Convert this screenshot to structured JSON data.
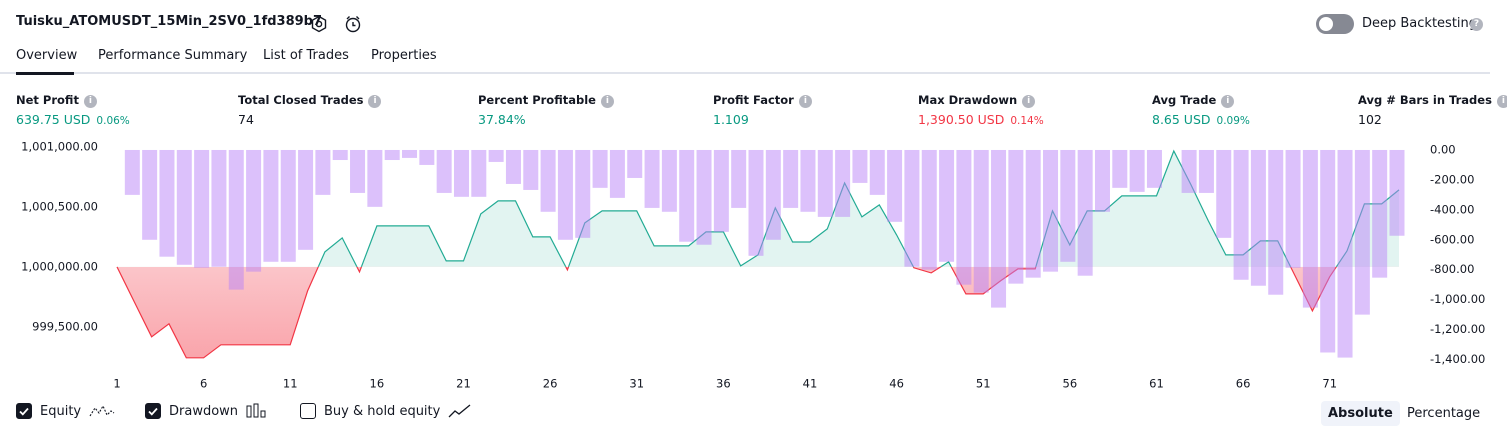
{
  "header": {
    "title": "Tuisku_ATOMUSDT_15Min_2SV0_1fd389b7",
    "deep_backtesting": "Deep Backtesting"
  },
  "tabs": [
    "Overview",
    "Performance Summary",
    "List of Trades",
    "Properties"
  ],
  "active_tab": 0,
  "metrics": [
    {
      "label": "Net Profit",
      "value": "639.75 USD",
      "pct": "0.06%",
      "tone": "pos"
    },
    {
      "label": "Total Closed Trades",
      "value": "74",
      "tone": "neu"
    },
    {
      "label": "Percent Profitable",
      "value": "37.84%",
      "tone": "pos"
    },
    {
      "label": "Profit Factor",
      "value": "1.109",
      "tone": "pos"
    },
    {
      "label": "Max Drawdown",
      "value": "1,390.50 USD",
      "pct": "0.14%",
      "tone": "neg"
    },
    {
      "label": "Avg Trade",
      "value": "8.65 USD",
      "pct": "0.09%",
      "tone": "pos"
    },
    {
      "label": "Avg # Bars in Trades",
      "value": "102",
      "tone": "neu"
    }
  ],
  "chart_data": {
    "type": "equity",
    "x": [
      1,
      2,
      3,
      4,
      5,
      6,
      7,
      8,
      9,
      10,
      11,
      12,
      13,
      14,
      15,
      16,
      17,
      18,
      19,
      20,
      21,
      22,
      23,
      24,
      25,
      26,
      27,
      28,
      29,
      30,
      31,
      32,
      33,
      34,
      35,
      36,
      37,
      38,
      39,
      40,
      41,
      42,
      43,
      44,
      45,
      46,
      47,
      48,
      49,
      50,
      51,
      52,
      53,
      54,
      55,
      56,
      57,
      58,
      59,
      60,
      61,
      62,
      63,
      64,
      65,
      66,
      67,
      68,
      69,
      70,
      71,
      72,
      73,
      74,
      75
    ],
    "xlim": [
      1,
      75
    ],
    "xticks": [
      1,
      6,
      11,
      16,
      21,
      26,
      31,
      36,
      41,
      46,
      51,
      56,
      61,
      66,
      71
    ],
    "ylim": [
      999140,
      1001050
    ],
    "yticks": [
      {
        "value": 999500,
        "label": "999,500.00"
      },
      {
        "value": 1000000,
        "label": "1,000,000.00"
      },
      {
        "value": 1000500,
        "label": "1,000,500.00"
      },
      {
        "value": 1001000,
        "label": "1,001,000.00"
      }
    ],
    "y2lim": [
      -1470,
      60
    ],
    "y2ticks": [
      {
        "value": 0,
        "label": "0.00"
      },
      {
        "value": -200,
        "label": "-200.00"
      },
      {
        "value": -400,
        "label": "-400.00"
      },
      {
        "value": -600,
        "label": "-600.00"
      },
      {
        "value": -800,
        "label": "-800.00"
      },
      {
        "value": -1000,
        "label": "-1,000.00"
      },
      {
        "value": -1200,
        "label": "-1,200.00"
      },
      {
        "value": -1400,
        "label": "-1,400.00"
      }
    ],
    "series": [
      {
        "name": "Equity",
        "color": "#22ab94",
        "negative_color": "#f23645",
        "checked": true,
        "values": [
          1000000,
          999708,
          999417,
          999525,
          999242,
          999242,
          999350,
          999350,
          999350,
          999350,
          999350,
          999800,
          1000125,
          1000242,
          999958,
          1000342,
          1000342,
          1000342,
          1000342,
          1000050,
          1000050,
          1000442,
          1000550,
          1000550,
          1000250,
          1000250,
          999975,
          1000367,
          1000467,
          1000467,
          1000467,
          1000175,
          1000175,
          1000175,
          1000292,
          1000292,
          1000008,
          1000100,
          1000492,
          1000208,
          1000208,
          1000317,
          1000700,
          1000417,
          1000517,
          1000267,
          999992,
          999950,
          1000042,
          999775,
          999775,
          999883,
          999983,
          999983,
          1000467,
          1000183,
          1000467,
          1000467,
          1000592,
          1000592,
          1000592,
          1000967,
          1000683,
          1000383,
          1000100,
          1000100,
          1000217,
          1000217,
          999925,
          999633,
          999917,
          1000133,
          1000525,
          1000525,
          1000642
        ]
      },
      {
        "name": "Drawdown",
        "color": "#b983f7",
        "axis": "y2",
        "checked": true,
        "values": [
          0,
          -300,
          -600,
          -713,
          -767,
          -787,
          -780,
          -933,
          -813,
          -747,
          -747,
          -667,
          -300,
          -67,
          -287,
          -380,
          -67,
          -53,
          -100,
          -287,
          -313,
          -313,
          -80,
          -227,
          -267,
          -413,
          -600,
          -587,
          -253,
          -320,
          -187,
          -387,
          -413,
          -613,
          -633,
          -547,
          -387,
          -707,
          -600,
          -387,
          -413,
          -447,
          -447,
          -220,
          -300,
          -480,
          -780,
          -800,
          -747,
          -900,
          -953,
          -1053,
          -893,
          -853,
          -813,
          -747,
          -840,
          -413,
          -253,
          -280,
          -253,
          0,
          -287,
          -287,
          -587,
          -867,
          -907,
          -967,
          -787,
          -1053,
          -1353,
          -1387,
          -1100,
          -853,
          -573
        ]
      }
    ],
    "extra_legend": {
      "name": "Buy & hold equity",
      "checked": false
    }
  },
  "views": [
    "Absolute",
    "Percentage"
  ],
  "active_view": 0
}
